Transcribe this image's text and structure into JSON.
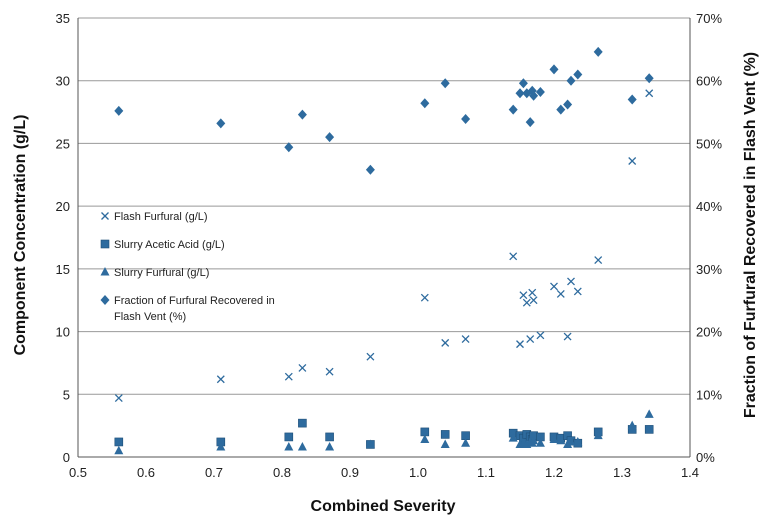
{
  "chart_data": {
    "type": "scatter",
    "title": "",
    "xlabel": "Combined Severity",
    "ylabel": "Component Concentration (g/L)",
    "y2label": "Fraction of Furfural Recovered in Flash Vent (%)",
    "xlim": [
      0.5,
      1.4
    ],
    "ylim": [
      0,
      35
    ],
    "y2lim": [
      0,
      70
    ],
    "xticks": [
      "0.5",
      "0.6",
      "0.7",
      "0.8",
      "0.9",
      "1.0",
      "1.1",
      "1.2",
      "1.3",
      "1.4"
    ],
    "yticks": [
      "0",
      "5",
      "10",
      "15",
      "20",
      "25",
      "30",
      "35"
    ],
    "y2ticks": [
      "0%",
      "10%",
      "20%",
      "30%",
      "40%",
      "50%",
      "60%",
      "70%"
    ],
    "grid": "horizontal",
    "legend_position": "left-middle",
    "color": "#2e6b9e",
    "series": [
      {
        "name": "Flash Furfural (g/L)",
        "marker": "x",
        "axis": "left",
        "x": [
          0.56,
          0.71,
          0.81,
          0.83,
          0.87,
          0.93,
          1.01,
          1.04,
          1.07,
          1.14,
          1.15,
          1.155,
          1.16,
          1.165,
          1.168,
          1.17,
          1.18,
          1.2,
          1.21,
          1.22,
          1.225,
          1.235,
          1.265,
          1.315,
          1.34
        ],
        "y": [
          4.7,
          6.2,
          6.4,
          7.1,
          6.8,
          8.0,
          12.7,
          9.1,
          9.4,
          16.0,
          9.0,
          12.9,
          12.3,
          9.4,
          13.1,
          12.5,
          9.7,
          13.6,
          13.0,
          9.6,
          14.0,
          13.2,
          15.7,
          23.6,
          29.0
        ]
      },
      {
        "name": "Slurry Acetic Acid (g/L)",
        "marker": "square",
        "axis": "left",
        "x": [
          0.56,
          0.71,
          0.81,
          0.83,
          0.87,
          0.93,
          1.01,
          1.04,
          1.07,
          1.14,
          1.15,
          1.155,
          1.16,
          1.165,
          1.168,
          1.17,
          1.18,
          1.2,
          1.21,
          1.22,
          1.225,
          1.235,
          1.265,
          1.315,
          1.34
        ],
        "y": [
          1.2,
          1.2,
          1.6,
          2.7,
          1.6,
          1.0,
          2.0,
          1.8,
          1.7,
          1.9,
          1.7,
          1.5,
          1.8,
          1.6,
          1.4,
          1.7,
          1.6,
          1.6,
          1.5,
          1.7,
          1.3,
          1.1,
          2.0,
          2.2,
          2.2
        ]
      },
      {
        "name": "Slurry Furfural (g/L)",
        "marker": "triangle",
        "axis": "left",
        "x": [
          0.56,
          0.71,
          0.81,
          0.83,
          0.87,
          0.93,
          1.01,
          1.04,
          1.07,
          1.14,
          1.15,
          1.155,
          1.16,
          1.165,
          1.168,
          1.17,
          1.18,
          1.2,
          1.21,
          1.22,
          1.225,
          1.235,
          1.265,
          1.315,
          1.34
        ],
        "y": [
          0.5,
          0.8,
          0.8,
          0.8,
          0.8,
          1.0,
          1.4,
          1.0,
          1.1,
          1.5,
          1.0,
          1.1,
          1.0,
          1.2,
          1.1,
          1.3,
          1.1,
          1.4,
          1.3,
          1.0,
          1.2,
          1.2,
          1.7,
          2.5,
          3.4
        ]
      },
      {
        "name": "Fraction of Furfural Recovered in Flash Vent (%)",
        "marker": "diamond",
        "axis": "right",
        "x": [
          0.56,
          0.71,
          0.81,
          0.83,
          0.87,
          0.93,
          1.01,
          1.04,
          1.07,
          1.14,
          1.15,
          1.155,
          1.16,
          1.165,
          1.168,
          1.17,
          1.18,
          1.2,
          1.21,
          1.22,
          1.225,
          1.235,
          1.265,
          1.315,
          1.34
        ],
        "y": [
          55.2,
          53.2,
          49.4,
          54.6,
          51.0,
          45.8,
          56.4,
          59.6,
          53.9,
          55.4,
          58.0,
          59.6,
          58.0,
          53.4,
          58.4,
          57.6,
          58.2,
          61.8,
          55.4,
          56.2,
          60.0,
          61.0,
          64.6,
          57.0,
          60.4
        ]
      }
    ]
  }
}
